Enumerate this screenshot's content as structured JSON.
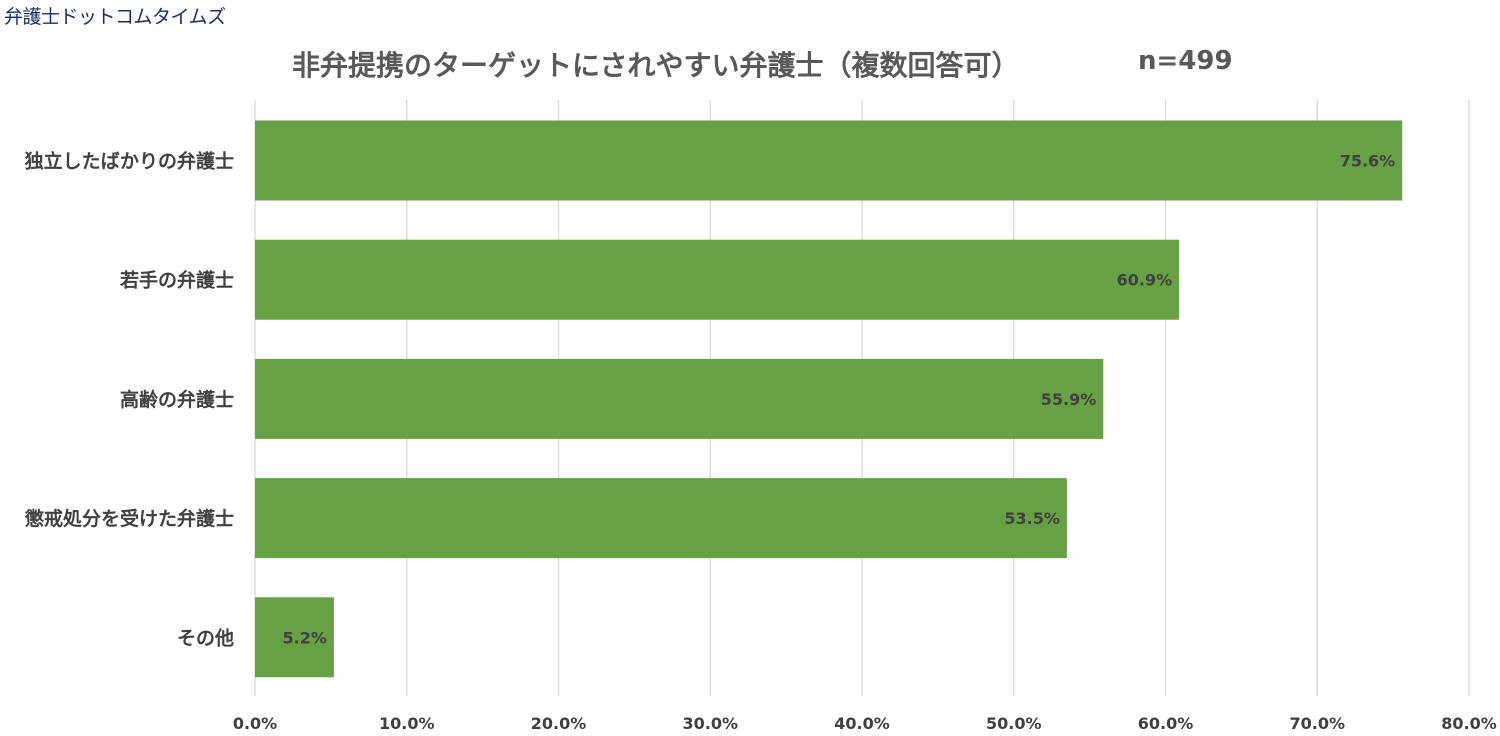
{
  "brand": "弁護士ドットコムタイムズ",
  "title": "非弁提携のターゲットにされやすい弁護士（複数回答可）",
  "sample_size": "n=499",
  "colors": {
    "bar": "#66a244",
    "grid": "#d9d9d9",
    "text": "#404040",
    "title": "#595959",
    "brand": "#1f2a6b"
  },
  "chart_data": {
    "type": "bar",
    "orientation": "horizontal",
    "title": "非弁提携のターゲットにされやすい弁護士（複数回答可）",
    "categories": [
      "独立したばかりの弁護士",
      "若手の弁護士",
      "高齢の弁護士",
      "懲戒処分を受けた弁護士",
      "その他"
    ],
    "values": [
      75.6,
      60.9,
      55.9,
      53.5,
      5.2
    ],
    "data_labels": [
      "75.6%",
      "60.9%",
      "55.9%",
      "53.5%",
      "5.2%"
    ],
    "xlim": [
      0,
      80
    ],
    "xticks": [
      0,
      10,
      20,
      30,
      40,
      50,
      60,
      70,
      80
    ],
    "xtick_labels": [
      "0.0%",
      "10.0%",
      "20.0%",
      "30.0%",
      "40.0%",
      "50.0%",
      "60.0%",
      "70.0%",
      "80.0%"
    ],
    "xlabel": "",
    "ylabel": "",
    "grid": "vertical",
    "legend": "none"
  }
}
